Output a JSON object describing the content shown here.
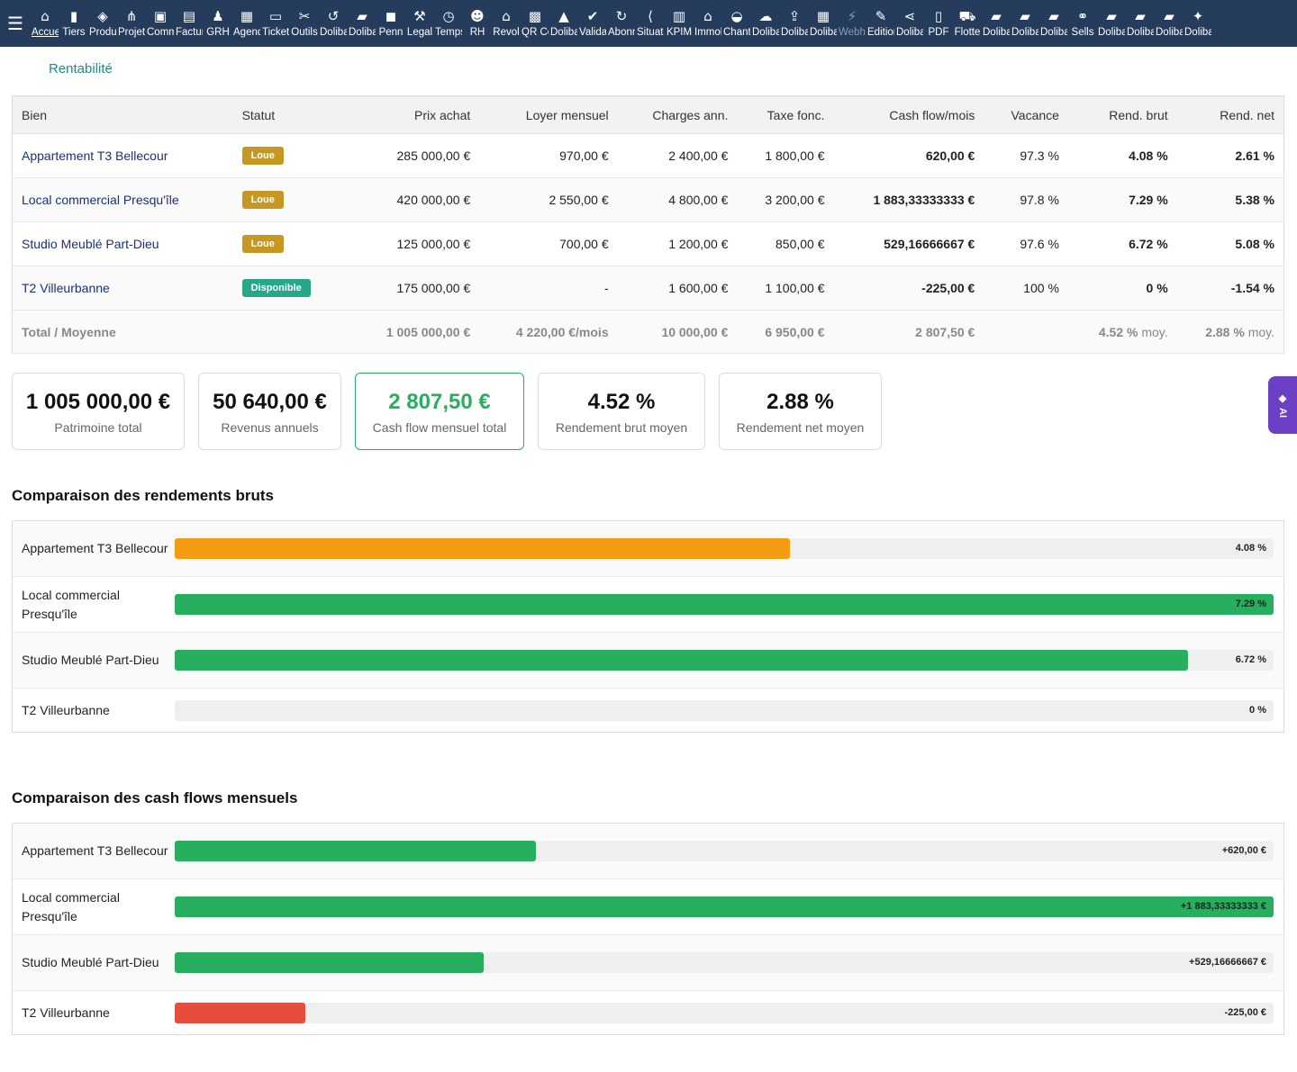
{
  "topbar": {
    "menu_icon": "hamburger-icon",
    "items": [
      {
        "label": "Accueil",
        "icon": "⌂"
      },
      {
        "label": "Tiers",
        "icon": "▮"
      },
      {
        "label": "Produits",
        "icon": "◈"
      },
      {
        "label": "Projets",
        "icon": "⋔"
      },
      {
        "label": "Commercial",
        "icon": "▣"
      },
      {
        "label": "Facturation",
        "icon": "▤"
      },
      {
        "label": "GRH",
        "icon": "♟"
      },
      {
        "label": "Agenda",
        "icon": "▦"
      },
      {
        "label": "Tickets",
        "icon": "▭"
      },
      {
        "label": "Outils",
        "icon": "✂"
      },
      {
        "label": "Dolibarr",
        "icon": "↺"
      },
      {
        "label": "Dolibarr",
        "icon": "▰"
      },
      {
        "label": "Penn",
        "icon": "◼"
      },
      {
        "label": "Legal",
        "icon": "⚒"
      },
      {
        "label": "Temps",
        "icon": "◷"
      },
      {
        "label": "RH",
        "icon": "☻"
      },
      {
        "label": "Revol",
        "icon": "⌂"
      },
      {
        "label": "QR Code",
        "icon": "▩"
      },
      {
        "label": "Dolibarr",
        "icon": "▲"
      },
      {
        "label": "Validation",
        "icon": "✔"
      },
      {
        "label": "Abonnements",
        "icon": "↻"
      },
      {
        "label": "Situation",
        "icon": "⟨"
      },
      {
        "label": "KPIM",
        "icon": "▥"
      },
      {
        "label": "Immobilier",
        "icon": "⌂"
      },
      {
        "label": "Chantier",
        "icon": "◒"
      },
      {
        "label": "Dolibarr",
        "icon": "☁"
      },
      {
        "label": "Dolibarr",
        "icon": "⇪"
      },
      {
        "label": "Dolibarr",
        "icon": "▦"
      },
      {
        "label": "Webhook",
        "icon": "⚡",
        "dim": true
      },
      {
        "label": "Edition",
        "icon": "✎"
      },
      {
        "label": "Dolibarr",
        "icon": "⋖"
      },
      {
        "label": "PDF",
        "icon": "▯"
      },
      {
        "label": "Flotte",
        "icon": "⛟"
      },
      {
        "label": "Dolibarr",
        "icon": "▰"
      },
      {
        "label": "Dolibarr",
        "icon": "▰"
      },
      {
        "label": "Dolibarr",
        "icon": "▰"
      },
      {
        "label": "Sells",
        "icon": "⚭"
      },
      {
        "label": "Dolibarr",
        "icon": "▰"
      },
      {
        "label": "Dolibarr",
        "icon": "▰"
      },
      {
        "label": "Dolibarr",
        "icon": "▰"
      },
      {
        "label": "Dolibarr",
        "icon": "✦"
      }
    ]
  },
  "page_tab": "Rentabilité",
  "table": {
    "headers": [
      "Bien",
      "Statut",
      "Prix achat",
      "Loyer mensuel",
      "Charges ann.",
      "Taxe fonc.",
      "Cash flow/mois",
      "Vacance",
      "Rend. brut",
      "Rend. net"
    ],
    "rows": [
      {
        "bien": "Appartement T3 Bellecour",
        "statut": "Loue",
        "prix": "285 000,00 €",
        "loyer": "970,00 €",
        "charges": "2 400,00 €",
        "taxe": "1 800,00 €",
        "cashflow": "620,00 €",
        "vacance": "97.3 %",
        "brut": "4.08 %",
        "net": "2.61 %"
      },
      {
        "bien": "Local commercial Presqu'île",
        "statut": "Loue",
        "prix": "420 000,00 €",
        "loyer": "2 550,00 €",
        "charges": "4 800,00 €",
        "taxe": "3 200,00 €",
        "cashflow": "1 883,33333333 €",
        "vacance": "97.8 %",
        "brut": "7.29 %",
        "net": "5.38 %"
      },
      {
        "bien": "Studio Meublé Part-Dieu",
        "statut": "Loue",
        "prix": "125 000,00 €",
        "loyer": "700,00 €",
        "charges": "1 200,00 €",
        "taxe": "850,00 €",
        "cashflow": "529,16666667 €",
        "vacance": "97.6 %",
        "brut": "6.72 %",
        "net": "5.08 %"
      },
      {
        "bien": "T2 Villeurbanne",
        "statut": "Disponible",
        "prix": "175 000,00 €",
        "loyer": "-",
        "charges": "1 600,00 €",
        "taxe": "1 100,00 €",
        "cashflow": "-225,00 €",
        "vacance": "100 %",
        "brut": "0 %",
        "net": "-1.54 %"
      }
    ],
    "total": {
      "label": "Total / Moyenne",
      "prix": "1 005 000,00 €",
      "loyer": "4 220,00 €/mois",
      "charges": "10 000,00 €",
      "taxe": "6 950,00 €",
      "cashflow": "2 807,50 €",
      "brut": "4.52 %",
      "net": "2.88 %",
      "moy": "moy."
    }
  },
  "cards": [
    {
      "value": "1 005 000,00 €",
      "label": "Patrimoine total"
    },
    {
      "value": "50 640,00 €",
      "label": "Revenus annuels"
    },
    {
      "value": "2 807,50 €",
      "label": "Cash flow mensuel total"
    },
    {
      "value": "4.52 %",
      "label": "Rendement brut moyen"
    },
    {
      "value": "2.88 %",
      "label": "Rendement net moyen"
    }
  ],
  "rendements": {
    "title": "Comparaison des rendements bruts",
    "rows": [
      {
        "label": "Appartement T3 Bellecour",
        "value": "4.08 %",
        "fraction": 0.56,
        "color": "#f39c12"
      },
      {
        "label": "Local commercial Presqu'île",
        "value": "7.29 %",
        "fraction": 1.0,
        "color": "#27ae5f"
      },
      {
        "label": "Studio Meublé Part-Dieu",
        "value": "6.72 %",
        "fraction": 0.922,
        "color": "#27ae5f"
      },
      {
        "label": "T2 Villeurbanne",
        "value": "0 %",
        "fraction": 0,
        "color": "#27ae5f"
      }
    ]
  },
  "cashflows": {
    "title": "Comparaison des cash flows mensuels",
    "rows": [
      {
        "label": "Appartement T3 Bellecour",
        "value": "+620,00 €",
        "fraction": 0.329,
        "color": "#27ae5f"
      },
      {
        "label": "Local commercial Presqu'île",
        "value": "+1 883,33333333 €",
        "fraction": 1.0,
        "color": "#27ae5f"
      },
      {
        "label": "Studio Meublé Part-Dieu",
        "value": "+529,16666667 €",
        "fraction": 0.281,
        "color": "#27ae5f"
      },
      {
        "label": "T2 Villeurbanne",
        "value": "-225,00 €",
        "fraction": 0.119,
        "color": "#e74c3c"
      }
    ]
  },
  "ai_tab": {
    "label": "AI",
    "icon": "sparkle-icon"
  }
}
